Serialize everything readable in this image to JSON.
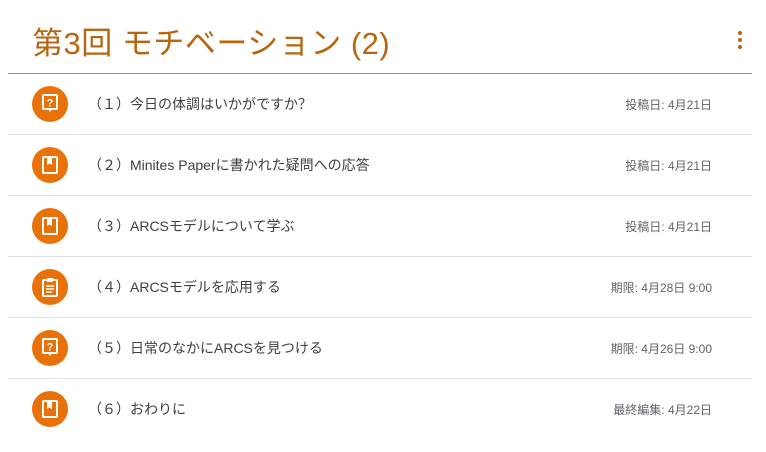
{
  "header": {
    "title": "第3回 モチベーション (2)",
    "menu_icon": "more-vert-icon"
  },
  "colors": {
    "accent": "#b8650f",
    "icon_bg": "#e8710a"
  },
  "items": [
    {
      "label": "（１）今日の体調はいかがですか？",
      "date": "投稿日: 4月21日",
      "icon": "question-icon"
    },
    {
      "label": "（２）Minites Paperに書かれた疑問への応答",
      "date": "投稿日: 4月21日",
      "icon": "material-icon"
    },
    {
      "label": "（３）ARCSモデルについて学ぶ",
      "date": "投稿日: 4月21日",
      "icon": "material-icon"
    },
    {
      "label": "（４）ARCSモデルを応用する",
      "date": "期限: 4月28日 9:00",
      "icon": "assignment-icon"
    },
    {
      "label": "（５）日常のなかにARCSを見つける",
      "date": "期限: 4月26日 9:00",
      "icon": "question-icon"
    },
    {
      "label": "（６）おわりに",
      "date": "最終編集: 4月22日",
      "icon": "material-icon"
    }
  ]
}
